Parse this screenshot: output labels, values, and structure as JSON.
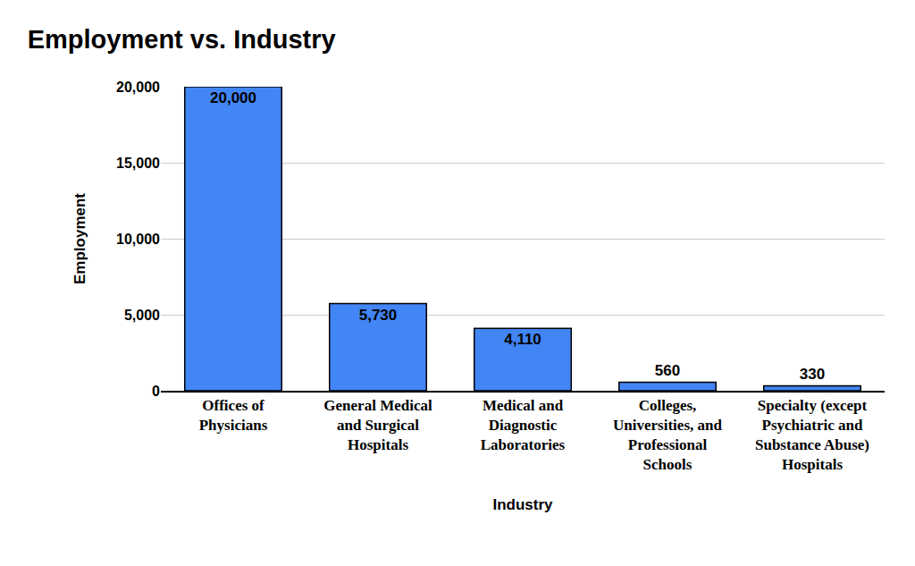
{
  "chart_data": {
    "type": "bar",
    "title": "Employment vs. Industry",
    "x_label": "Industry",
    "y_label": "Employment",
    "categories": [
      "Offices of Physicians",
      "General Medical and Surgical Hospitals",
      "Medical and Diagnostic Laboratories",
      "Colleges, Universities, and Professional Schools",
      "Specialty (except Psychiatric and Substance Abuse) Hospitals"
    ],
    "values": [
      20000,
      5730,
      4110,
      560,
      330
    ],
    "value_labels": [
      "20,000",
      "5,730",
      "4,110",
      "560",
      "330"
    ],
    "color": "#4285f4",
    "ylim": [
      0,
      20000
    ],
    "yticks": [
      0,
      {
        "value": 5000,
        "label": "5,000"
      },
      {
        "value": 10000,
        "label": "10,000"
      },
      {
        "value": 15000,
        "label": "15,000"
      },
      {
        "value": 20000,
        "label": "20,000"
      }
    ],
    "grid": true,
    "data_labels": true
  }
}
